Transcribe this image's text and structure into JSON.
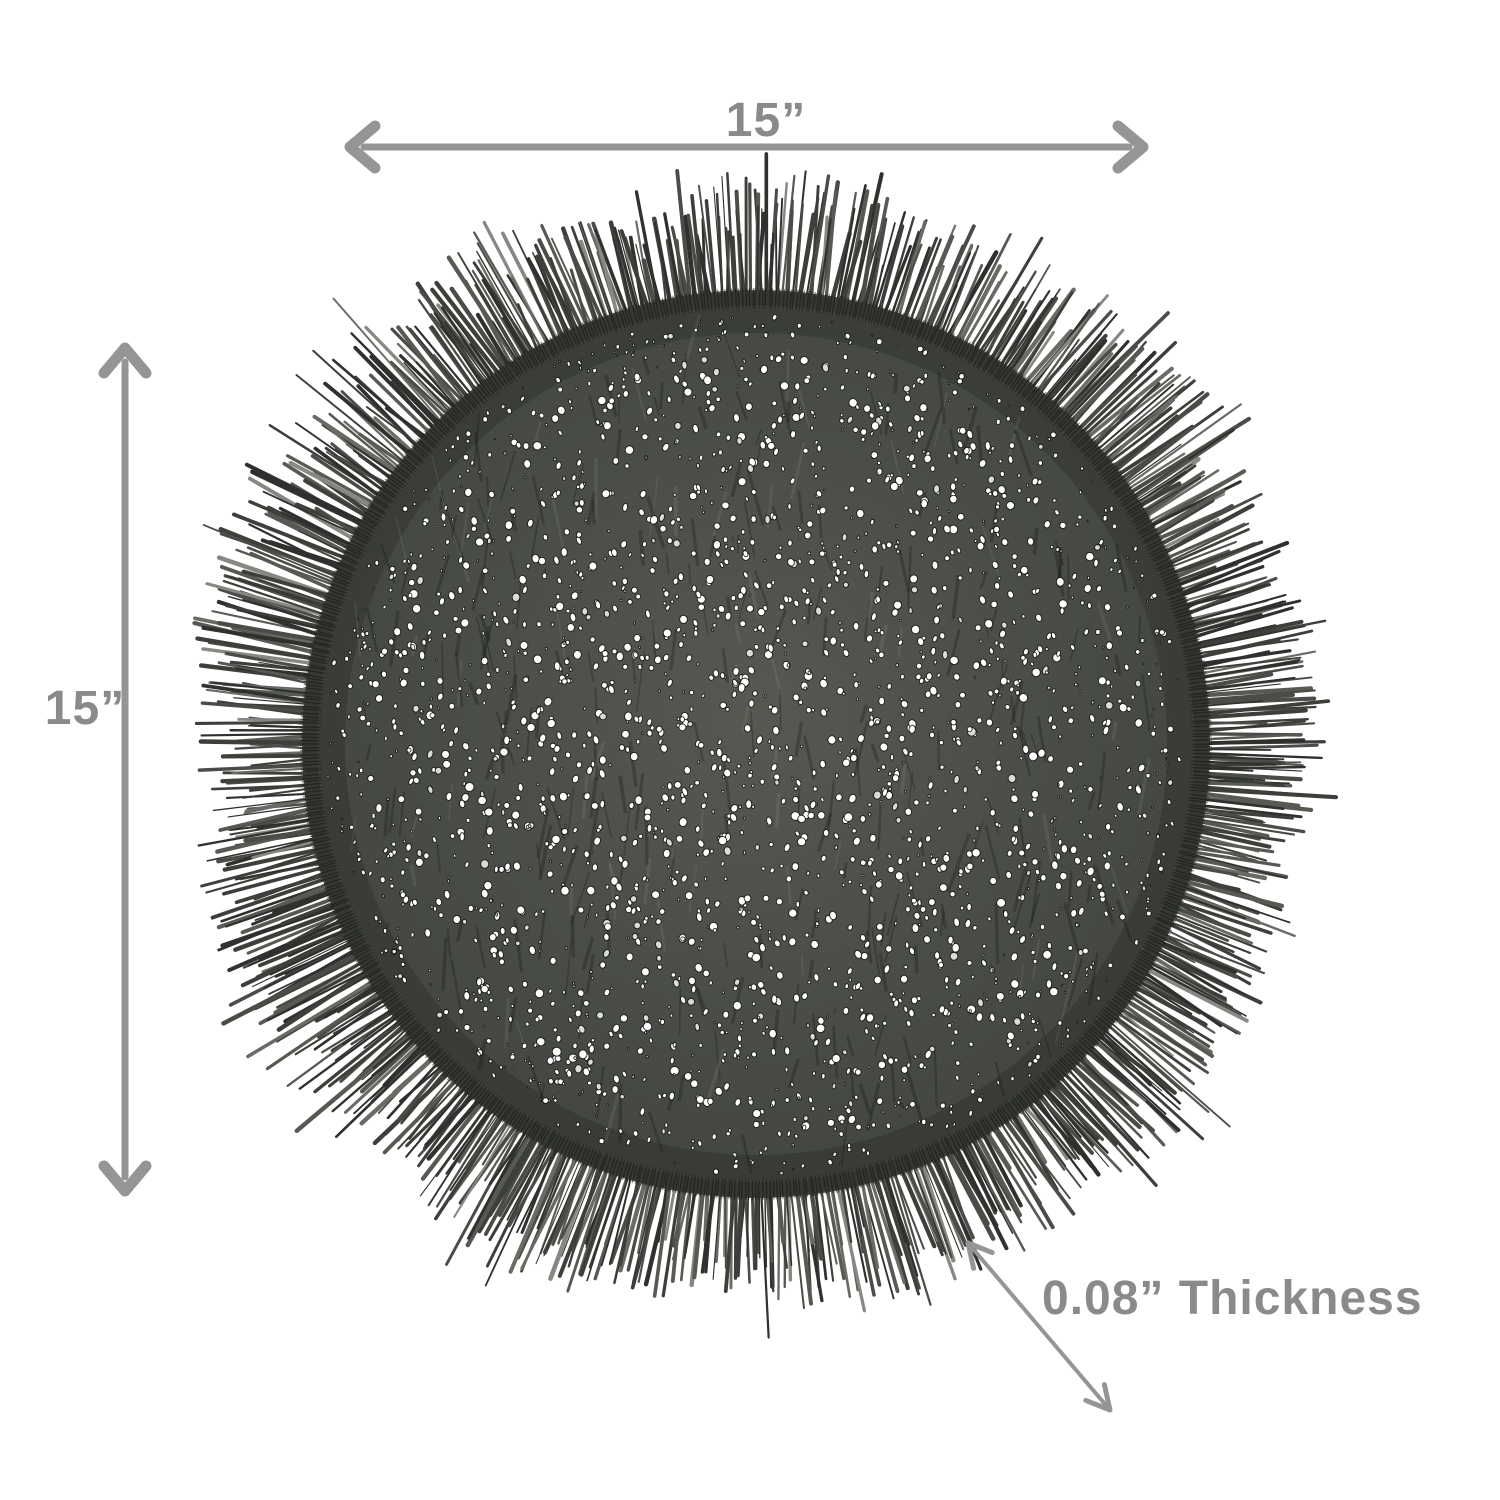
{
  "product": {
    "name": "round-fringed-woven-vinyl-placemat",
    "mat_color": "#4a4d47",
    "mat_color_light": "#54574f",
    "mat_color_dark": "#3b3e38",
    "ring_color": "#33362f",
    "hole_color": "#ffffff",
    "fringe_colors": [
      "#2e312d",
      "#3d403a",
      "#4a4d47",
      "#575a53",
      "#696c65",
      "#868982"
    ]
  },
  "annotations": {
    "width_label": "15”",
    "height_label": "15”",
    "thickness_label": "0.08” Thickness"
  },
  "style": {
    "background": "#ffffff",
    "arrow_color": "#959595",
    "label_color": "#8a8a8a"
  }
}
